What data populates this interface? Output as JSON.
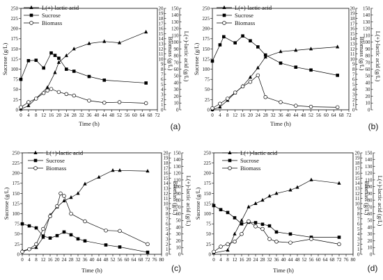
{
  "chart_data": [
    {
      "type": "line",
      "panel_label": "(a)",
      "xlabel": "Time (h)",
      "ylabel_left": "Sucrose (g/L)",
      "ylabel_mid": "Biomass (g/L)",
      "ylabel_right": "L(+)-lactic acid (g/L)",
      "xticks": [
        0,
        4,
        8,
        12,
        16,
        20,
        24,
        28,
        32,
        36,
        40,
        44,
        48,
        52,
        56,
        60,
        64,
        68,
        72
      ],
      "xlim": [
        0,
        72
      ],
      "yleft_ticks": [
        0,
        25,
        50,
        75,
        100,
        125,
        150,
        175,
        200,
        225,
        250
      ],
      "yleft_lim": [
        0,
        250
      ],
      "ymid_ticks": [
        0,
        1,
        2,
        3,
        4,
        5,
        6,
        7,
        8,
        9,
        10,
        11,
        12,
        13,
        14,
        15,
        16,
        17,
        18,
        19,
        20
      ],
      "ymid_lim": [
        0,
        20
      ],
      "yright_ticks": [
        0,
        10,
        20,
        30,
        40,
        50,
        60,
        70,
        80,
        90,
        100,
        110,
        120,
        130,
        140,
        150
      ],
      "yright_lim": [
        0,
        150
      ],
      "series": [
        {
          "name": "L(+)-lactic acid",
          "axis": "right",
          "marker": "triangle",
          "x": [
            0,
            4,
            14,
            18,
            20,
            24,
            28,
            36,
            44,
            52,
            66
          ],
          "y": [
            1,
            6,
            33,
            55,
            70,
            80,
            90,
            98,
            101,
            99,
            115
          ]
        },
        {
          "name": "Sucrose",
          "axis": "left",
          "marker": "square",
          "x": [
            0,
            4,
            8,
            12,
            16,
            18,
            20,
            24,
            28,
            36,
            44,
            66
          ],
          "y": [
            75,
            121,
            122,
            103,
            140,
            134,
            127,
            100,
            95,
            82,
            73,
            66
          ]
        },
        {
          "name": "Biomass",
          "axis": "mid",
          "marker": "circle",
          "x": [
            0,
            4,
            8,
            12,
            14,
            16,
            20,
            24,
            28,
            36,
            44,
            52,
            66
          ],
          "y": [
            0.5,
            1.5,
            2.2,
            3.3,
            3.8,
            4.1,
            3.5,
            3.1,
            2.8,
            1.8,
            1.4,
            1.5,
            1.3
          ]
        }
      ]
    },
    {
      "type": "line",
      "panel_label": "(b)",
      "xlabel": "Time (h)",
      "ylabel_left": "Sucrose (g/L)",
      "ylabel_mid": "Biomass (g/L)",
      "ylabel_right": "L(+)-lactic acid (g/L)",
      "xticks": [
        0,
        4,
        8,
        12,
        16,
        20,
        24,
        28,
        32,
        36,
        40,
        44,
        48,
        52,
        56,
        60,
        64,
        68,
        72
      ],
      "xlim": [
        0,
        72
      ],
      "yleft_ticks": [
        0,
        25,
        50,
        75,
        100,
        125,
        150,
        175,
        200,
        225,
        250
      ],
      "yleft_lim": [
        0,
        250
      ],
      "ymid_ticks": [
        0,
        1,
        2,
        3,
        4,
        5,
        6,
        7,
        8,
        9,
        10,
        11,
        12,
        13,
        14,
        15,
        16,
        17,
        18,
        19,
        20
      ],
      "ymid_lim": [
        0,
        20
      ],
      "yright_ticks": [
        0,
        10,
        20,
        30,
        40,
        50,
        60,
        70,
        80,
        90,
        100,
        110,
        120,
        130,
        140,
        150
      ],
      "yright_lim": [
        0,
        150
      ],
      "series": [
        {
          "name": "L(+)-lactic acid",
          "axis": "right",
          "marker": "triangle",
          "x": [
            0,
            4,
            8,
            12,
            16,
            20,
            24,
            28,
            36,
            44,
            52,
            66
          ],
          "y": [
            0,
            4,
            14,
            25,
            35,
            48,
            62,
            78,
            86,
            88,
            90,
            93
          ]
        },
        {
          "name": "Sucrose",
          "axis": "left",
          "marker": "square",
          "x": [
            0,
            4,
            6,
            12,
            16,
            20,
            24,
            28,
            36,
            44,
            52,
            66
          ],
          "y": [
            120,
            160,
            180,
            165,
            182,
            170,
            155,
            135,
            115,
            105,
            98,
            85
          ]
        },
        {
          "name": "Biomass",
          "axis": "mid",
          "marker": "circle",
          "x": [
            0,
            4,
            8,
            12,
            16,
            20,
            24,
            28,
            36,
            44,
            52,
            66
          ],
          "y": [
            0.3,
            1.2,
            2.2,
            3.4,
            4.6,
            5.5,
            6.8,
            2.5,
            1.5,
            0.8,
            0.6,
            0.5
          ]
        }
      ]
    },
    {
      "type": "line",
      "panel_label": "(c)",
      "xlabel": "Time (h)",
      "ylabel_left": "Sucrose (g/L)",
      "ylabel_mid": "Biomass (g/L)",
      "ylabel_right": "L(+)-lactic acid (g/L)",
      "xticks": [
        0,
        4,
        8,
        12,
        16,
        20,
        24,
        28,
        32,
        36,
        40,
        44,
        48,
        52,
        56,
        60,
        64,
        68,
        72,
        76,
        80
      ],
      "xlim": [
        0,
        80
      ],
      "yleft_ticks": [
        0,
        25,
        50,
        75,
        100,
        125,
        150,
        175,
        200,
        225,
        250
      ],
      "yleft_lim": [
        0,
        250
      ],
      "ymid_ticks": [
        0,
        1,
        2,
        3,
        4,
        5,
        6,
        7,
        8,
        9,
        10,
        11,
        12,
        13,
        14,
        15,
        16,
        17,
        18,
        19,
        20
      ],
      "ymid_lim": [
        0,
        20
      ],
      "yright_ticks": [
        0,
        10,
        20,
        30,
        40,
        50,
        60,
        70,
        80,
        90,
        100,
        110,
        120,
        130,
        140,
        150
      ],
      "yright_lim": [
        0,
        150
      ],
      "series": [
        {
          "name": "L(+)-lactic acid",
          "axis": "right",
          "marker": "triangle",
          "x": [
            0,
            8,
            12,
            16,
            20,
            24,
            28,
            32,
            36,
            44,
            52,
            56,
            72
          ],
          "y": [
            5,
            10,
            25,
            58,
            70,
            79,
            84,
            90,
            104,
            114,
            124,
            124,
            123
          ]
        },
        {
          "name": "Sucrose",
          "axis": "left",
          "marker": "square",
          "x": [
            0,
            4,
            8,
            12,
            16,
            20,
            24,
            28,
            32,
            36,
            48,
            56,
            72
          ],
          "y": [
            75,
            70,
            65,
            45,
            40,
            46,
            55,
            48,
            38,
            33,
            23,
            18,
            5
          ]
        },
        {
          "name": "Biomass",
          "axis": "mid",
          "marker": "circle",
          "x": [
            0,
            4,
            8,
            12,
            16,
            20,
            22,
            24,
            28,
            36,
            48,
            56,
            72
          ],
          "y": [
            0.5,
            1.0,
            2.0,
            5.0,
            7.5,
            9.5,
            12.0,
            11.5,
            8.0,
            6.5,
            4.7,
            4.6,
            2.0
          ]
        }
      ]
    },
    {
      "type": "line",
      "panel_label": "(d)",
      "xlabel": "Time (h)",
      "ylabel_left": "Sucrose (g/L)",
      "ylabel_mid": "Biomass (g/L)",
      "ylabel_right": "L(+)-lactic acid (g/L)",
      "xticks": [
        0,
        4,
        8,
        12,
        16,
        20,
        24,
        28,
        32,
        36,
        40,
        44,
        48,
        52,
        56,
        60,
        64,
        68,
        72,
        76,
        80
      ],
      "xlim": [
        0,
        80
      ],
      "yleft_ticks": [
        0,
        25,
        50,
        75,
        100,
        125,
        150,
        175,
        200,
        225,
        250
      ],
      "yleft_lim": [
        0,
        250
      ],
      "ymid_ticks": [
        0,
        1,
        2,
        3,
        4,
        5,
        6,
        7,
        8,
        9,
        10,
        11,
        12,
        13,
        14,
        15,
        16,
        17,
        18,
        19,
        20
      ],
      "ymid_lim": [
        0,
        20
      ],
      "yright_ticks": [
        0,
        10,
        20,
        30,
        40,
        50,
        60,
        70,
        80,
        90,
        100,
        110,
        120,
        130,
        140,
        150
      ],
      "yright_lim": [
        0,
        150
      ],
      "series": [
        {
          "name": "L(+)-lactic acid",
          "axis": "right",
          "marker": "triangle",
          "x": [
            0,
            8,
            12,
            16,
            20,
            24,
            28,
            32,
            36,
            44,
            48,
            56,
            72
          ],
          "y": [
            2,
            6,
            30,
            50,
            70,
            75,
            80,
            86,
            90,
            95,
            99,
            110,
            105
          ]
        },
        {
          "name": "Sucrose",
          "axis": "left",
          "marker": "square",
          "x": [
            0,
            4,
            8,
            12,
            16,
            20,
            24,
            28,
            32,
            36,
            44,
            56,
            72
          ],
          "y": [
            120,
            110,
            103,
            90,
            75,
            79,
            78,
            74,
            70,
            55,
            50,
            42,
            42
          ]
        },
        {
          "name": "Biomass",
          "axis": "mid",
          "marker": "circle",
          "x": [
            0,
            4,
            8,
            12,
            16,
            20,
            24,
            28,
            32,
            36,
            44,
            56,
            72
          ],
          "y": [
            0.5,
            1.5,
            2.0,
            2.5,
            4.0,
            6.5,
            5.5,
            5.0,
            3.0,
            2.5,
            2.3,
            3.0,
            2.0
          ]
        }
      ]
    }
  ]
}
